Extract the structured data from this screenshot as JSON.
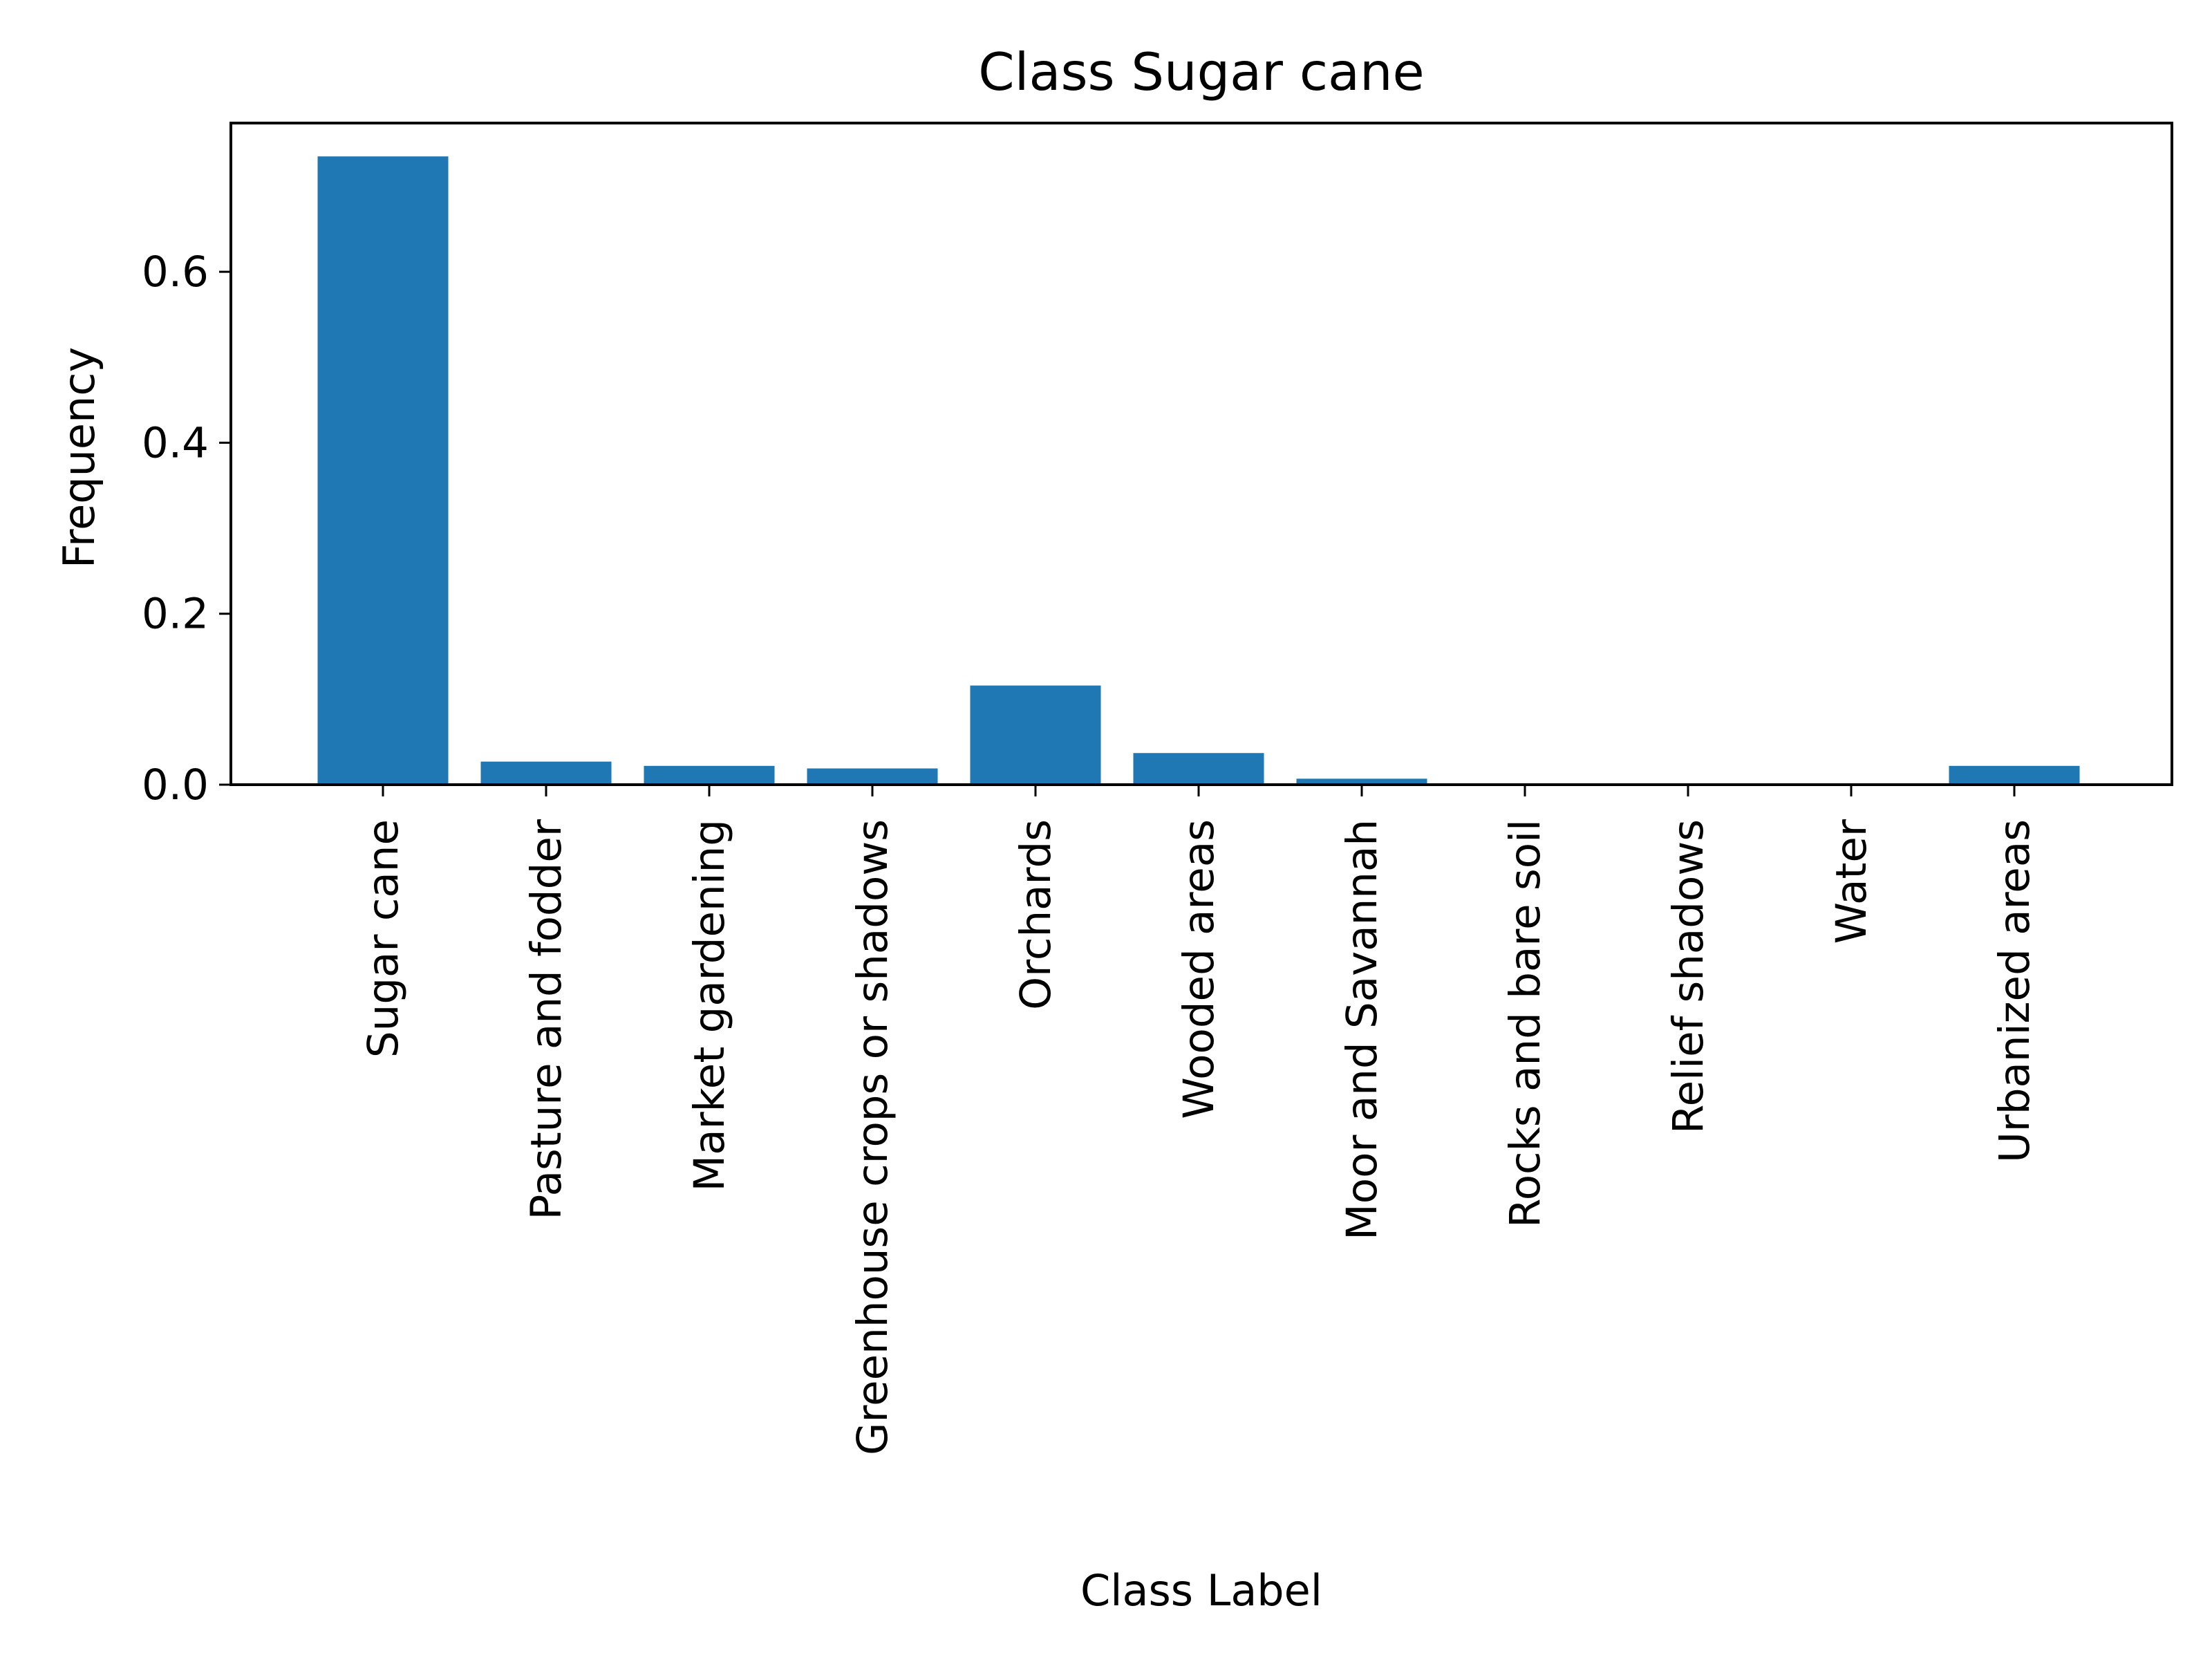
{
  "chart_data": {
    "type": "bar",
    "title": "Class Sugar cane",
    "xlabel": "Class Label",
    "ylabel": "Frequency",
    "categories": [
      "Sugar cane",
      "Pasture and fodder",
      "Market gardening",
      "Greenhouse crops or shadows",
      "Orchards",
      "Wooded areas",
      "Moor and Savannah",
      "Rocks and bare soil",
      "Relief shadows",
      "Water",
      "Urbanized areas"
    ],
    "values": [
      0.735,
      0.027,
      0.022,
      0.019,
      0.116,
      0.037,
      0.007,
      0.0,
      0.0,
      0.001,
      0.022
    ],
    "yticks": [
      0.0,
      0.2,
      0.4,
      0.6
    ],
    "ytick_labels": [
      "0.0",
      "0.2",
      "0.4",
      "0.6"
    ],
    "ylim": [
      0.0,
      0.774
    ],
    "grid": false,
    "bar_color": "#1f77b4"
  }
}
